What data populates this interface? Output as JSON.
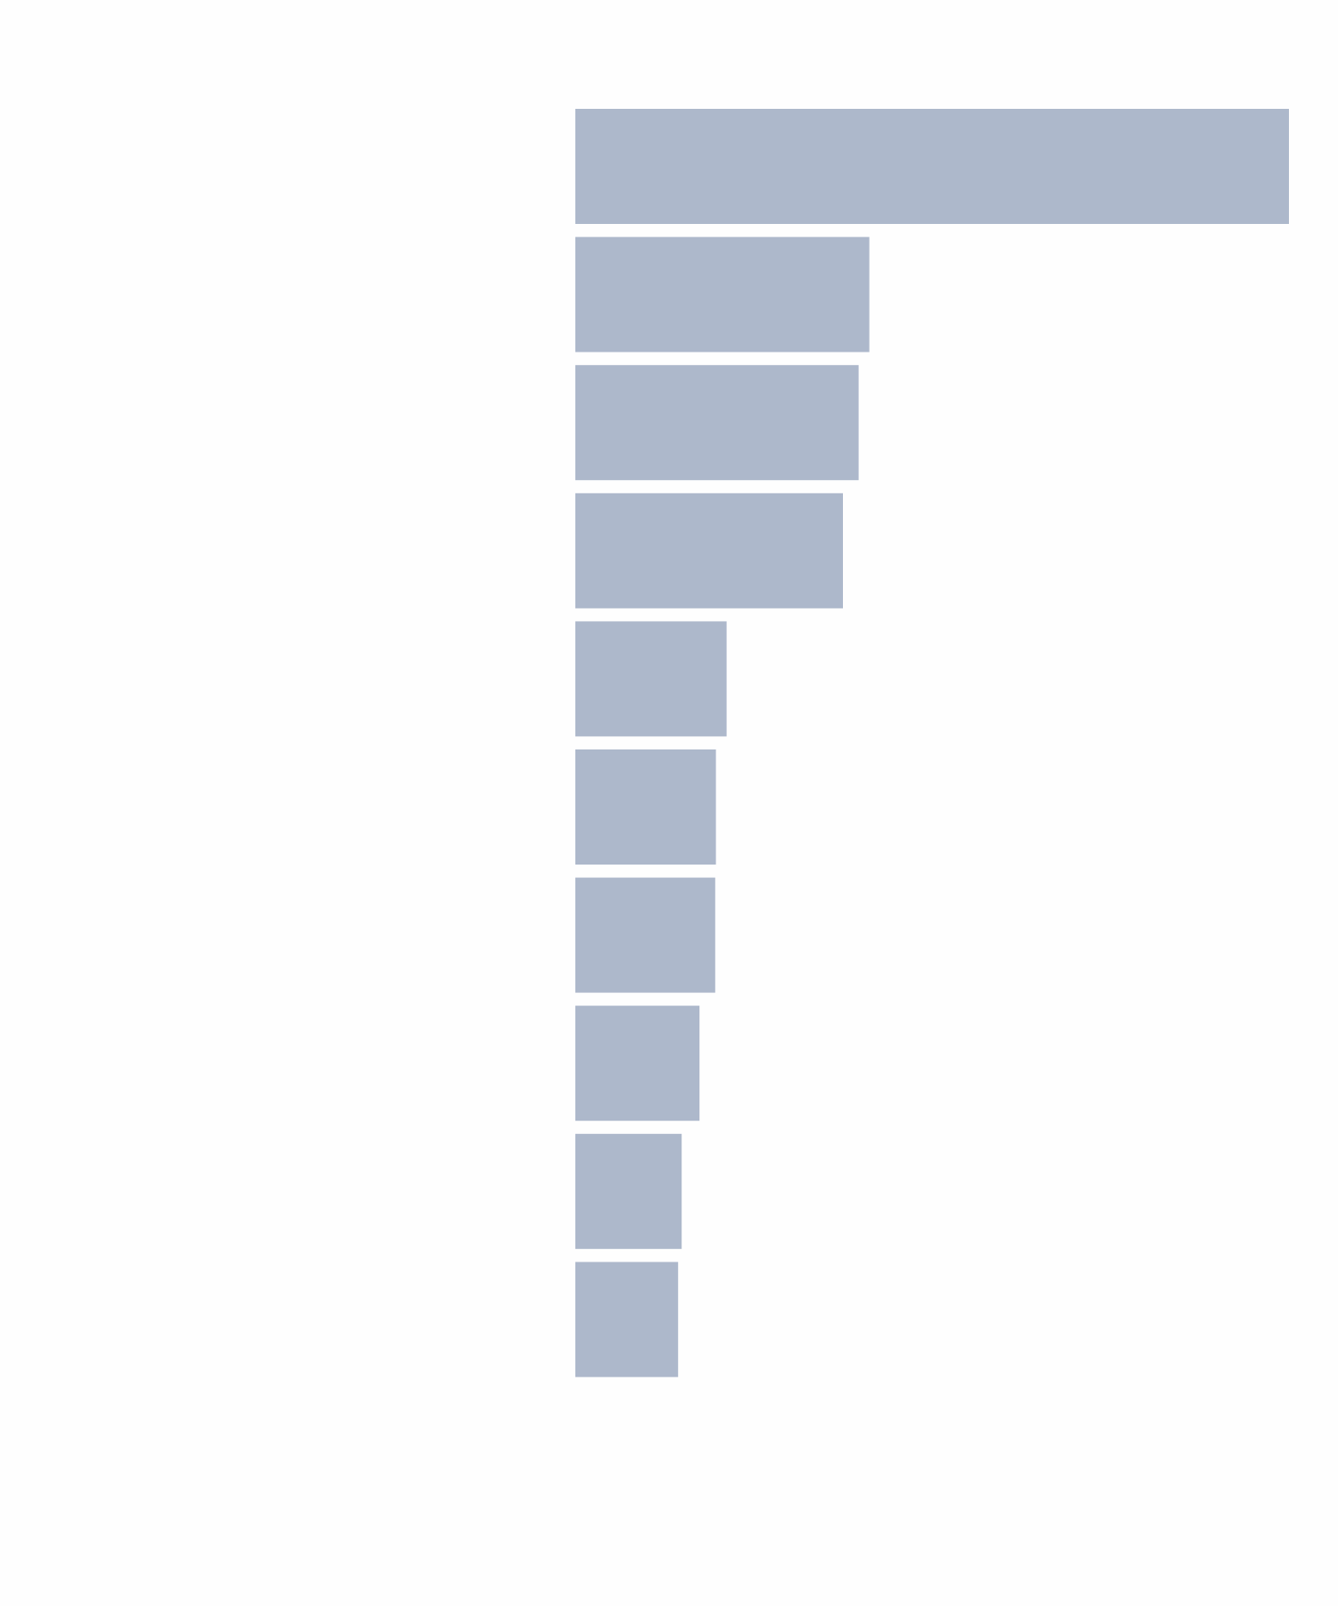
{
  "chart_data": {
    "type": "bar",
    "orientation": "horizontal",
    "title": "",
    "xlabel": "",
    "ylabel": "",
    "categories": [
      "",
      "",
      "",
      "",
      "",
      "",
      "",
      "",
      "",
      ""
    ],
    "values": [
      100,
      41.2,
      39.7,
      37.5,
      21.2,
      19.7,
      19.6,
      17.4,
      14.9,
      14.4
    ],
    "xlim": [
      0,
      100
    ],
    "grid": false,
    "legend": false,
    "colors": {
      "bar": "#adb8cb",
      "background": "#fefefe"
    }
  }
}
